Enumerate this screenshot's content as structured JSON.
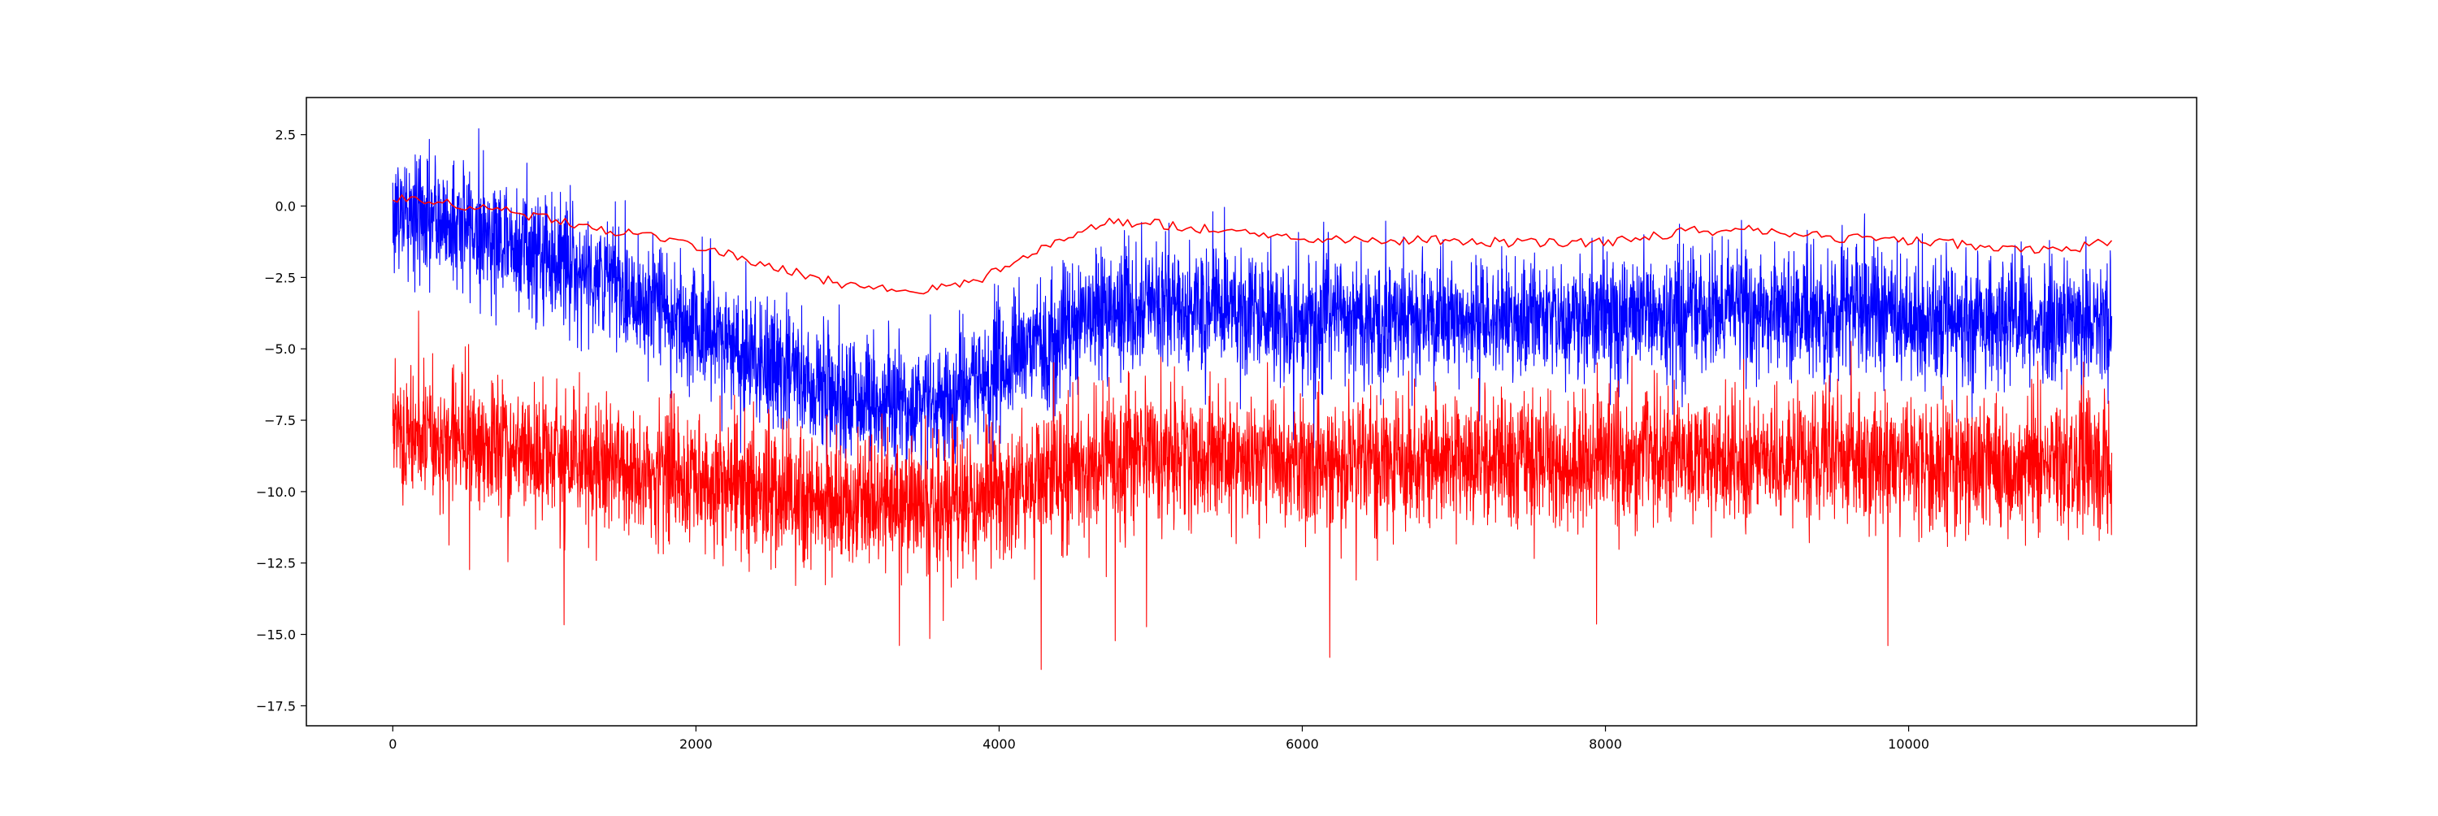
{
  "chart_data": {
    "type": "line",
    "title": "",
    "xlabel": "",
    "ylabel": "",
    "grid": false,
    "xlim": [
      -570,
      11900
    ],
    "ylim": [
      -18.2,
      3.8
    ],
    "x_ticks": [
      0,
      2000,
      4000,
      6000,
      8000,
      10000
    ],
    "x_tick_labels": [
      "0",
      "2000",
      "4000",
      "6000",
      "8000",
      "10000"
    ],
    "y_ticks": [
      2.5,
      0.0,
      -2.5,
      -5.0,
      -7.5,
      -10.0,
      -12.5,
      -15.0,
      -17.5
    ],
    "y_tick_labels": [
      "2.5",
      "0.0",
      "−2.5",
      "−5.0",
      "−7.5",
      "−10.0",
      "−12.5",
      "−15.0",
      "−17.5"
    ],
    "x_range": [
      0,
      11340
    ],
    "series": [
      {
        "color": "#0000ff",
        "kind": "noisy",
        "points": 11340,
        "trend_x": [
          0,
          500,
          1000,
          1500,
          2000,
          2500,
          3000,
          3500,
          3900,
          4300,
          4700,
          5000,
          5500,
          6000,
          6500,
          7000,
          7500,
          8000,
          8500,
          9000,
          9500,
          10000,
          10500,
          11000,
          11340
        ],
        "trend_y": [
          -0.2,
          -0.7,
          -1.7,
          -2.8,
          -4.2,
          -5.6,
          -6.7,
          -7.0,
          -6.2,
          -4.7,
          -3.6,
          -3.4,
          -3.7,
          -3.9,
          -4.0,
          -4.0,
          -4.0,
          -4.0,
          -3.7,
          -3.6,
          -3.7,
          -3.8,
          -4.0,
          -4.1,
          -4.1
        ],
        "noise_sd": 1.1,
        "spike_max": 3.0
      },
      {
        "color": "#ff0000",
        "kind": "smooth",
        "trend_x": [
          0,
          500,
          1000,
          1500,
          2000,
          2500,
          3000,
          3500,
          3900,
          4300,
          4700,
          5000,
          5500,
          6000,
          6500,
          7000,
          7500,
          8000,
          8500,
          9000,
          9500,
          10000,
          10500,
          11000,
          11340
        ],
        "trend_y": [
          0.3,
          0.0,
          -0.4,
          -0.9,
          -1.4,
          -2.1,
          -2.8,
          -3.0,
          -2.5,
          -1.4,
          -0.6,
          -0.6,
          -0.9,
          -1.1,
          -1.2,
          -1.2,
          -1.3,
          -1.3,
          -0.9,
          -0.8,
          -1.1,
          -1.2,
          -1.4,
          -1.6,
          -1.2
        ]
      },
      {
        "color": "#ff0000",
        "kind": "noisy",
        "points": 11340,
        "trend_x": [
          0,
          500,
          1000,
          1500,
          2000,
          2500,
          3000,
          3500,
          3900,
          4300,
          4700,
          5000,
          5500,
          6000,
          6500,
          7000,
          7500,
          8000,
          8500,
          9000,
          9500,
          10000,
          10500,
          11000,
          11340
        ],
        "trend_y": [
          -7.8,
          -8.3,
          -8.7,
          -9.2,
          -9.6,
          -10.0,
          -10.4,
          -10.5,
          -10.3,
          -9.4,
          -8.7,
          -8.6,
          -8.8,
          -9.0,
          -9.0,
          -9.0,
          -9.0,
          -9.0,
          -8.8,
          -8.8,
          -8.9,
          -9.0,
          -9.1,
          -9.1,
          -9.0
        ],
        "noise_sd": 1.15,
        "spike_min": -17.3
      }
    ]
  }
}
